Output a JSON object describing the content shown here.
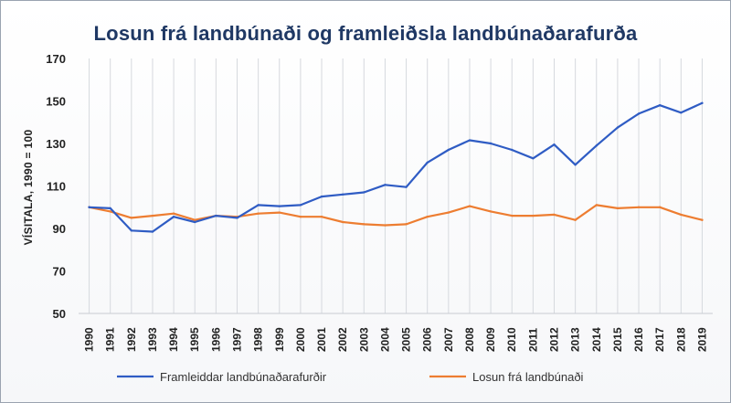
{
  "chart_data": {
    "type": "line",
    "title": "Losun frá landbúnaði  og framleiðsla landbúnaðarafurða",
    "xlabel": "",
    "ylabel": "VÍSITALA, 1990 = 100",
    "ylim": [
      50,
      170
    ],
    "yticks": [
      50,
      70,
      90,
      110,
      130,
      150,
      170
    ],
    "x": [
      "1990",
      "1991",
      "1992",
      "1993",
      "1994",
      "1995",
      "1996",
      "1997",
      "1998",
      "1999",
      "2000",
      "2001",
      "2002",
      "2003",
      "2004",
      "2005",
      "2006",
      "2007",
      "2008",
      "2009",
      "2010",
      "2011",
      "2012",
      "2013",
      "2014",
      "2015",
      "2016",
      "2017",
      "2018",
      "2019"
    ],
    "grid": "vertical",
    "legend_position": "bottom",
    "series": [
      {
        "name": "Framleiddar landbúnaðarafurðir",
        "color": "#2f5cc4",
        "values": [
          100,
          99.5,
          89,
          88.5,
          95.5,
          93,
          96,
          95,
          101,
          100.5,
          101,
          105,
          106,
          107,
          110.5,
          109.5,
          121,
          127,
          131.5,
          130,
          127,
          123,
          129.5,
          120,
          129,
          137.5,
          144,
          148,
          144.5,
          149
        ]
      },
      {
        "name": "Losun frá landbúnaði",
        "color": "#ed7d31",
        "values": [
          100,
          98,
          95,
          96,
          97,
          94,
          96,
          95.5,
          97,
          97.5,
          95.5,
          95.5,
          93,
          92,
          91.5,
          92,
          95.5,
          97.5,
          100.5,
          98,
          96,
          96,
          96.5,
          94,
          101,
          99.5,
          100,
          100,
          96.5,
          94
        ]
      }
    ]
  }
}
